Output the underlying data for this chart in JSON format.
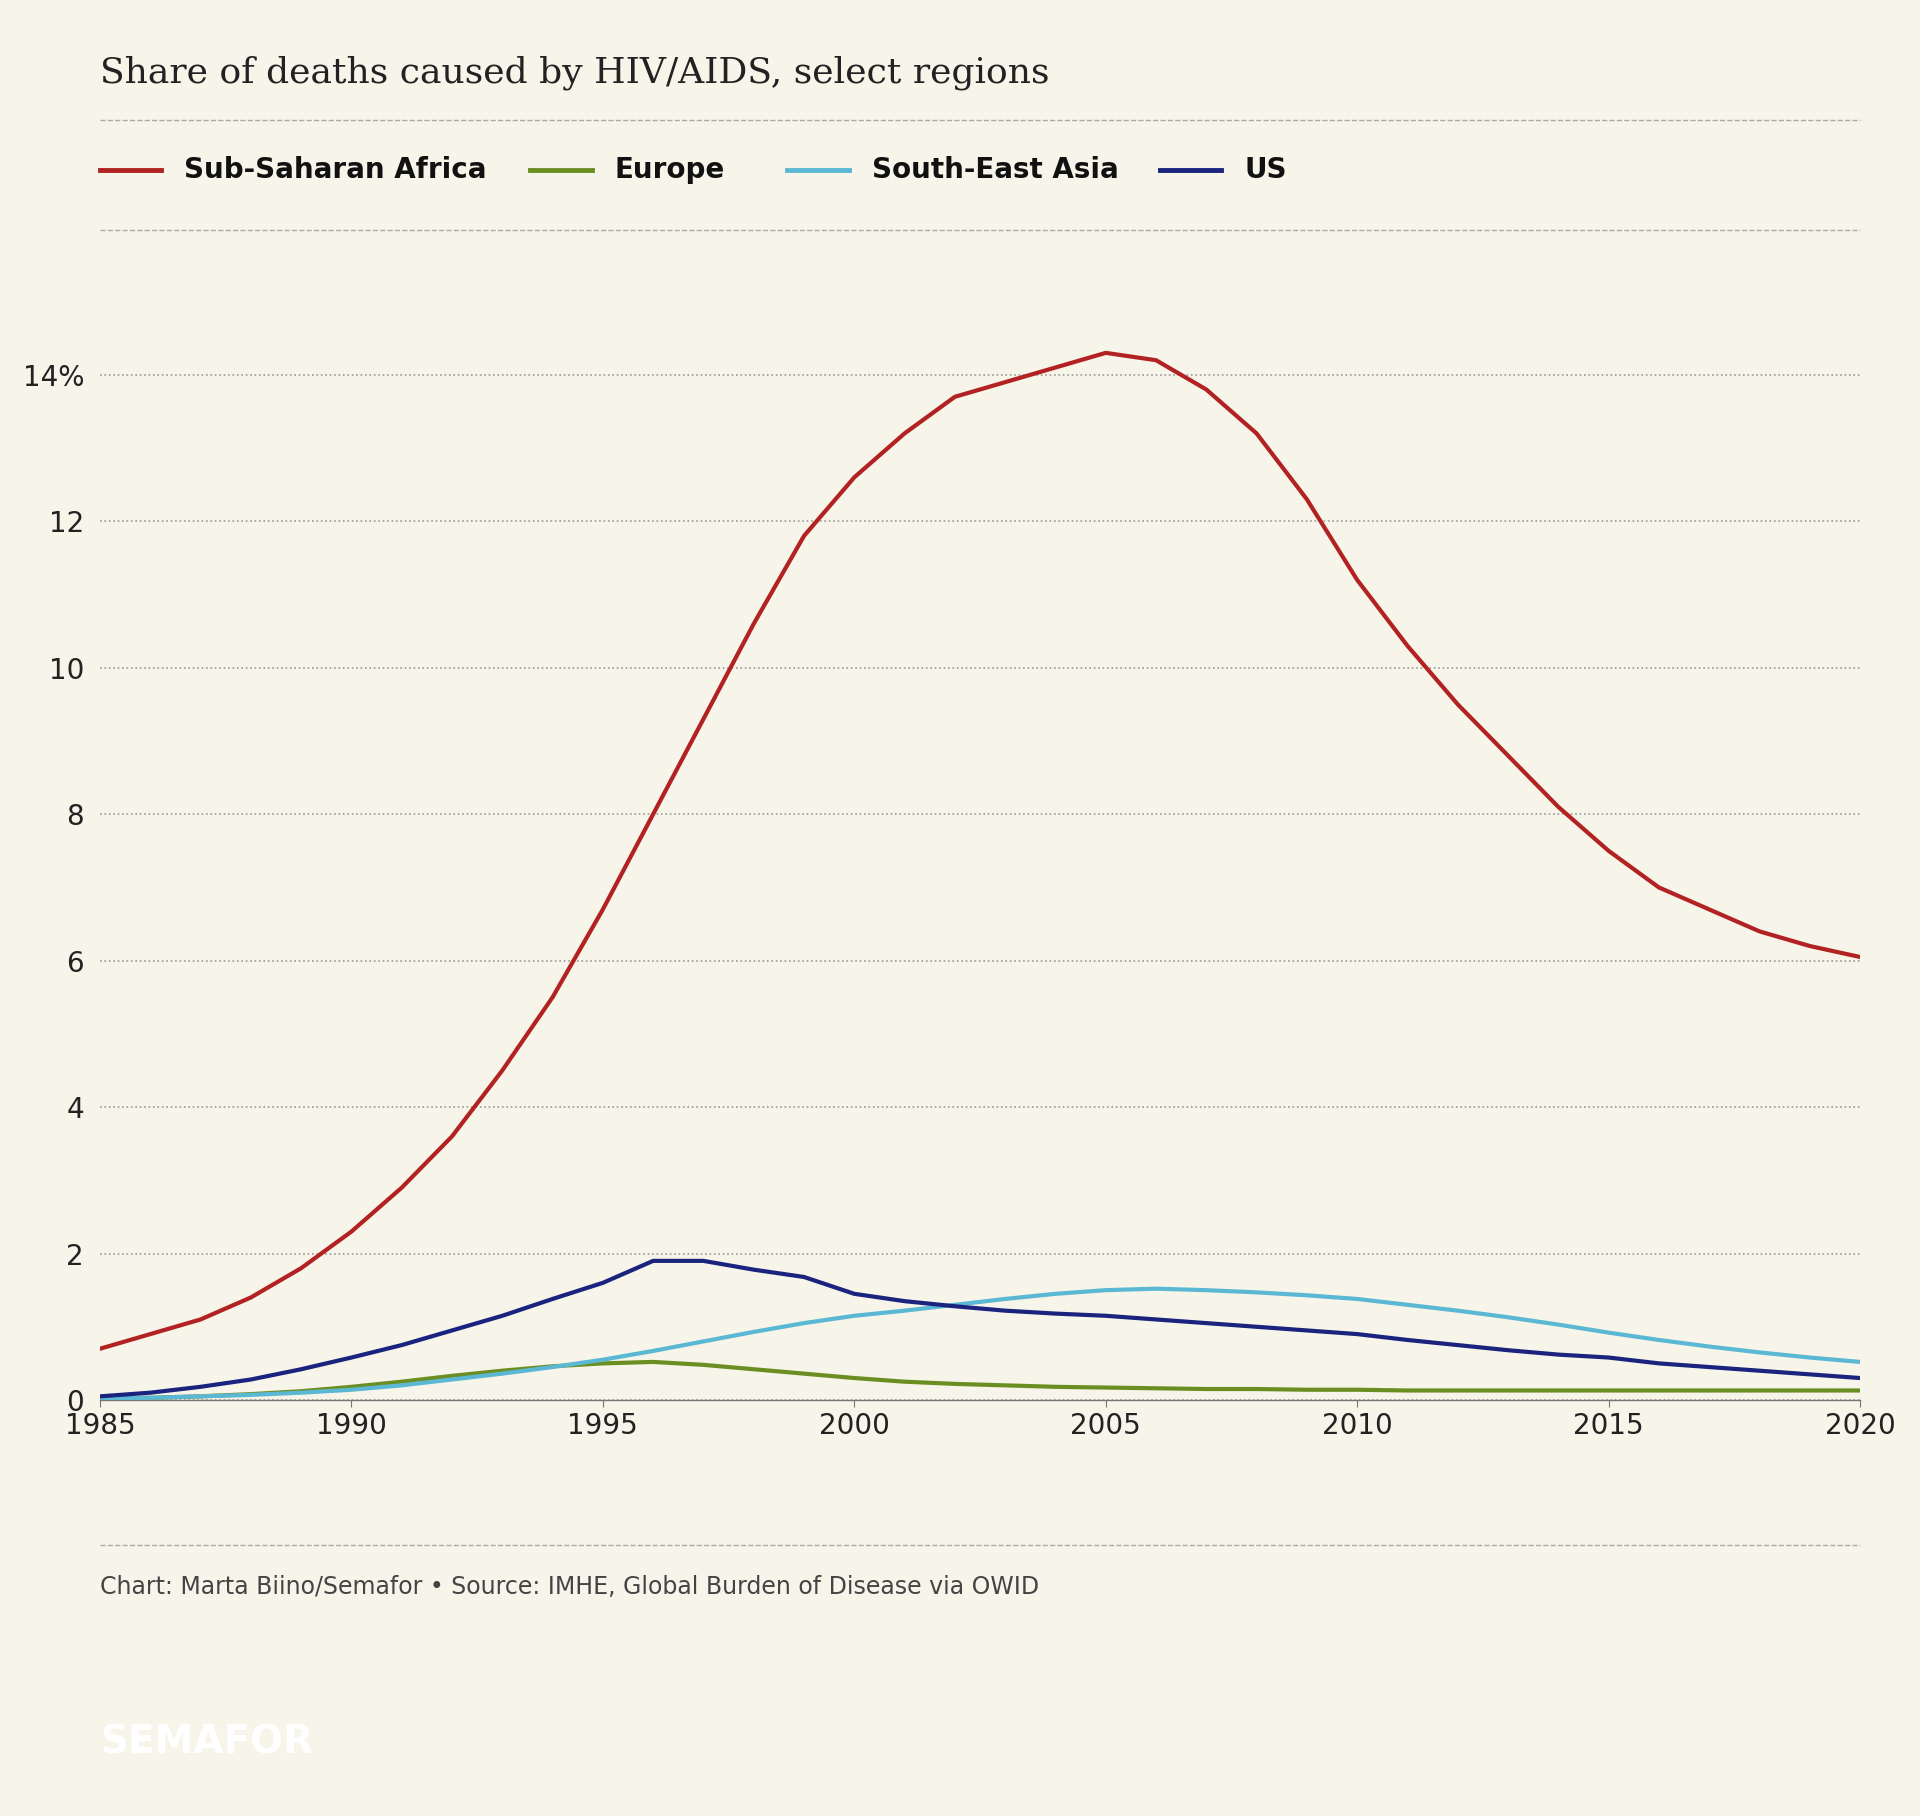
{
  "title": "Share of deaths caused by HIV/AIDS, select regions",
  "background_color": "#f7f4e9",
  "plot_bg_color": "#f7f4e9",
  "footer_bg_color": "#111111",
  "footer_text": "SEMAFOR",
  "source_text": "Chart: Marta Biino/Semafor • Source: IMHE, Global Burden of Disease via OWID",
  "years": [
    1985,
    1986,
    1987,
    1988,
    1989,
    1990,
    1991,
    1992,
    1993,
    1994,
    1995,
    1996,
    1997,
    1998,
    1999,
    2000,
    2001,
    2002,
    2003,
    2004,
    2005,
    2006,
    2007,
    2008,
    2009,
    2010,
    2011,
    2012,
    2013,
    2014,
    2015,
    2016,
    2017,
    2018,
    2019,
    2020
  ],
  "sub_saharan_africa": [
    0.7,
    0.9,
    1.1,
    1.4,
    1.8,
    2.3,
    2.9,
    3.6,
    4.5,
    5.5,
    6.7,
    8.0,
    9.3,
    10.6,
    11.8,
    12.6,
    13.2,
    13.7,
    13.9,
    14.1,
    14.3,
    14.2,
    13.8,
    13.2,
    12.3,
    11.2,
    10.3,
    9.5,
    8.8,
    8.1,
    7.5,
    7.0,
    6.7,
    6.4,
    6.2,
    6.05
  ],
  "europe": [
    0.02,
    0.03,
    0.05,
    0.08,
    0.12,
    0.18,
    0.25,
    0.33,
    0.4,
    0.46,
    0.5,
    0.52,
    0.48,
    0.42,
    0.36,
    0.3,
    0.25,
    0.22,
    0.2,
    0.18,
    0.17,
    0.16,
    0.15,
    0.15,
    0.14,
    0.14,
    0.13,
    0.13,
    0.13,
    0.13,
    0.13,
    0.13,
    0.13,
    0.13,
    0.13,
    0.13
  ],
  "south_east_asia": [
    0.02,
    0.03,
    0.05,
    0.07,
    0.1,
    0.14,
    0.2,
    0.28,
    0.36,
    0.45,
    0.55,
    0.67,
    0.8,
    0.93,
    1.05,
    1.15,
    1.22,
    1.3,
    1.38,
    1.45,
    1.5,
    1.52,
    1.5,
    1.47,
    1.43,
    1.38,
    1.3,
    1.22,
    1.13,
    1.03,
    0.92,
    0.82,
    0.73,
    0.65,
    0.58,
    0.52
  ],
  "us": [
    0.05,
    0.1,
    0.18,
    0.28,
    0.42,
    0.58,
    0.75,
    0.95,
    1.15,
    1.38,
    1.6,
    1.9,
    1.9,
    1.78,
    1.68,
    1.45,
    1.35,
    1.28,
    1.22,
    1.18,
    1.15,
    1.1,
    1.05,
    1.0,
    0.95,
    0.9,
    0.82,
    0.75,
    0.68,
    0.62,
    0.58,
    0.5,
    0.45,
    0.4,
    0.35,
    0.3
  ],
  "series_colors": {
    "sub_saharan_africa": "#b22222",
    "europe": "#6b8e23",
    "south_east_asia": "#5bb8d4",
    "us": "#1a237e"
  },
  "series_labels": {
    "sub_saharan_africa": "Sub-Saharan Africa",
    "europe": "Europe",
    "south_east_asia": "South-East Asia",
    "us": "US"
  },
  "ylim": [
    0,
    15.5
  ],
  "ytick_vals": [
    0,
    2,
    4,
    6,
    8,
    10,
    12,
    14
  ],
  "xlim": [
    1985,
    2020
  ],
  "xticks": [
    1985,
    1990,
    1995,
    2000,
    2005,
    2010,
    2015,
    2020
  ],
  "line_width": 3.0,
  "title_fontsize": 26,
  "tick_fontsize": 20,
  "legend_fontsize": 20,
  "source_fontsize": 17,
  "footer_fontsize": 28
}
